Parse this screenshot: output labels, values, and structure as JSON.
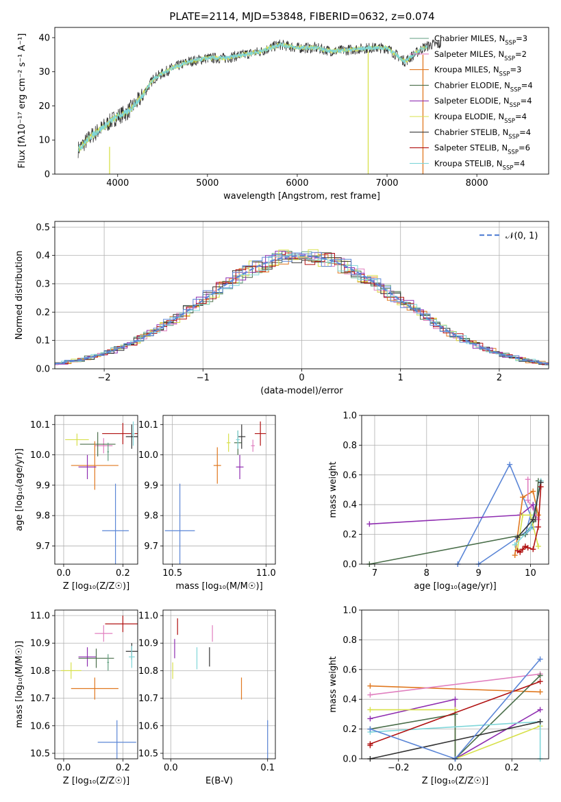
{
  "figure": {
    "title": "PLATE=2114, MJD=53848, FIBERID=0632, z=0.074"
  },
  "colors": {
    "cmiles": "#5f9e7f",
    "smiles": "#e07fbf",
    "kmiles": "#e0771e",
    "celodie": "#4a6e4a",
    "selodie": "#8e2cb0",
    "kelodie": "#d7e04a",
    "cstelib": "#333333",
    "sstelib": "#b01010",
    "kstelib": "#7fd6d9",
    "blue": "#5a85d6"
  },
  "chart_data": [
    {
      "id": "spectrum",
      "type": "line",
      "title": "PLATE=2114, MJD=53848, FIBERID=0632, z=0.074",
      "xlabel": "wavelength [Angstrom, rest frame]",
      "ylabel": "Flux [fλ10⁻¹⁷ erg cm⁻² s⁻¹ A⁻¹]",
      "xlim": [
        3300,
        8800
      ],
      "ylim": [
        0,
        43
      ],
      "xticks": [
        4000,
        5000,
        6000,
        7000,
        8000
      ],
      "yticks": [
        0,
        10,
        20,
        30,
        40
      ],
      "grid": false,
      "legend_position": "top-right",
      "legend": [
        {
          "name": "Chabrier MILES, N",
          "sub": "SSP",
          "tail": "=3",
          "color_key": "cmiles"
        },
        {
          "name": "Salpeter MILES, N",
          "sub": "SSP",
          "tail": "=2",
          "color_key": "smiles"
        },
        {
          "name": "Kroupa MILES, N",
          "sub": "SSP",
          "tail": "=3",
          "color_key": "kmiles"
        },
        {
          "name": "Chabrier ELODIE, N",
          "sub": "SSP",
          "tail": "=4",
          "color_key": "celodie"
        },
        {
          "name": "Salpeter ELODIE, N",
          "sub": "SSP",
          "tail": "=4",
          "color_key": "selodie"
        },
        {
          "name": "Kroupa ELODIE, N",
          "sub": "SSP",
          "tail": "=4",
          "color_key": "kelodie"
        },
        {
          "name": "Chabrier STELIB, N",
          "sub": "SSP",
          "tail": "=4",
          "color_key": "cstelib"
        },
        {
          "name": "Salpeter STELIB, N",
          "sub": "SSP",
          "tail": "=6",
          "color_key": "sstelib"
        },
        {
          "name": "Kroupa STELIB, N",
          "sub": "SSP",
          "tail": "=4",
          "color_key": "kstelib"
        }
      ],
      "continuum_wave": [
        3550,
        3700,
        3850,
        4000,
        4100,
        4250,
        4400,
        4600,
        4800,
        5000,
        5200,
        5400,
        5600,
        5800,
        6000,
        6200,
        6400,
        6600,
        6800,
        7000,
        7200,
        7400,
        7500
      ],
      "continuum_flux": [
        7,
        11,
        14,
        17,
        18,
        22,
        28,
        31,
        33,
        34,
        34,
        35,
        36,
        38,
        37,
        37,
        36,
        36.5,
        37,
        37,
        33,
        37,
        38
      ],
      "vertical_lines": [
        {
          "x": 3910,
          "from": 0,
          "to": 8,
          "color_key": "kelodie"
        },
        {
          "x": 6790,
          "from": 0,
          "to": 36,
          "color_key": "kelodie"
        },
        {
          "x": 7400,
          "from": 0,
          "to": 35,
          "color_key": "kmiles"
        }
      ]
    },
    {
      "id": "residual_hist",
      "type": "line",
      "xlabel": "(data-model)/error",
      "ylabel": "Normed distribution",
      "xlim": [
        -2.5,
        2.5
      ],
      "ylim": [
        0,
        0.52
      ],
      "xticks": [
        -2,
        -1,
        0,
        1,
        2
      ],
      "xtick_labels": [
        "−2",
        "−1",
        "0",
        "1",
        "2"
      ],
      "yticks": [
        0,
        0.1,
        0.2,
        0.3,
        0.4,
        0.5
      ],
      "ytick_labels": [
        "0.0",
        "0.1",
        "0.2",
        "0.3",
        "0.4",
        "0.5"
      ],
      "grid": true,
      "legend": [
        {
          "name": "𝒩(0, 1)",
          "color_key": "blue"
        }
      ],
      "legend_position": "top-right",
      "bin_width": 0.1
    },
    {
      "id": "age_vs_Z",
      "type": "scatter",
      "xlabel": "Z [log₁₀(Z/Z☉)]",
      "ylabel": "age  [log₁₀(age/yr)]",
      "xlim": [
        -0.03,
        0.25
      ],
      "ylim": [
        9.64,
        10.13
      ],
      "xticks": [
        0.0,
        0.2
      ],
      "xtick_labels": [
        "0.0",
        "0.2"
      ],
      "yticks": [
        9.7,
        9.8,
        9.9,
        10.0,
        10.1
      ],
      "ytick_labels": [
        "9.7",
        "9.8",
        "9.9",
        "10.0",
        "10.1"
      ],
      "grid": true,
      "points": [
        {
          "x": 0.045,
          "y": 10.05,
          "xerr": 0.04,
          "yerr": 0.02,
          "color_key": "kelodie"
        },
        {
          "x": 0.135,
          "y": 10.03,
          "xerr": 0.03,
          "yerr": 0.025,
          "color_key": "smiles"
        },
        {
          "x": 0.115,
          "y": 10.035,
          "xerr": 0.06,
          "yerr": 0.04,
          "color_key": "celodie"
        },
        {
          "x": 0.105,
          "y": 9.965,
          "xerr": 0.08,
          "yerr": 0.08,
          "color_key": "kmiles"
        },
        {
          "x": 0.08,
          "y": 9.96,
          "xerr": 0.03,
          "yerr": 0.04,
          "color_key": "selodie"
        },
        {
          "x": 0.2,
          "y": 10.07,
          "xerr": 0.07,
          "yerr": 0.035,
          "color_key": "sstelib"
        },
        {
          "x": 0.23,
          "y": 10.06,
          "xerr": 0.02,
          "yerr": 0.04,
          "color_key": "cstelib"
        },
        {
          "x": 0.235,
          "y": 10.07,
          "xerr": 0.005,
          "yerr": 0.04,
          "color_key": "kstelib"
        },
        {
          "x": 0.15,
          "y": 10.01,
          "xerr": 0.003,
          "yerr": 0.03,
          "color_key": "cmiles"
        },
        {
          "x": 0.175,
          "y": 9.75,
          "xerr": 0.045,
          "yerr": 0.155,
          "color_key": "blue"
        }
      ]
    },
    {
      "id": "age_vs_mass",
      "type": "scatter",
      "xlabel": "mass [log₁₀(M/M☉)]",
      "xlim": [
        10.45,
        11.05
      ],
      "ylim": [
        9.64,
        10.13
      ],
      "xticks": [
        10.5,
        11.0
      ],
      "xtick_labels": [
        "10.5",
        "11.0"
      ],
      "yticks": [
        9.7,
        9.8,
        9.9,
        10.0,
        10.1
      ],
      "ytick_labels": [
        "9.7",
        "9.8",
        "9.9",
        "10.0",
        "10.1"
      ],
      "grid": true,
      "points": [
        {
          "x": 10.8,
          "y": 10.04,
          "xerr": 0.01,
          "yerr": 0.03,
          "color_key": "kelodie"
        },
        {
          "x": 10.74,
          "y": 9.965,
          "xerr": 0.02,
          "yerr": 0.06,
          "color_key": "kmiles"
        },
        {
          "x": 10.85,
          "y": 10.04,
          "xerr": 0.02,
          "yerr": 0.04,
          "color_key": "celodie"
        },
        {
          "x": 10.86,
          "y": 9.96,
          "xerr": 0.02,
          "yerr": 0.04,
          "color_key": "selodie"
        },
        {
          "x": 10.93,
          "y": 10.03,
          "xerr": 0.01,
          "yerr": 0.02,
          "color_key": "smiles"
        },
        {
          "x": 10.97,
          "y": 10.07,
          "xerr": 0.03,
          "yerr": 0.04,
          "color_key": "sstelib"
        },
        {
          "x": 10.87,
          "y": 10.06,
          "xerr": 0.02,
          "yerr": 0.04,
          "color_key": "cstelib"
        },
        {
          "x": 10.85,
          "y": 10.05,
          "xerr": 0.01,
          "yerr": 0.03,
          "color_key": "kstelib"
        },
        {
          "x": 10.54,
          "y": 9.75,
          "xerr": 0.08,
          "yerr": 0.155,
          "color_key": "blue"
        }
      ]
    },
    {
      "id": "weight_vs_age",
      "type": "line",
      "xlabel": "age  [log₁₀(age/yr)]",
      "ylabel": "mass weight",
      "xlim": [
        6.75,
        10.35
      ],
      "ylim": [
        0,
        1.0
      ],
      "xticks": [
        7,
        8,
        9,
        10
      ],
      "xtick_labels": [
        "7",
        "8",
        "9",
        "10"
      ],
      "yticks": [
        0,
        0.2,
        0.4,
        0.6,
        0.8,
        1.0
      ],
      "ytick_labels": [
        "0.0",
        "0.2",
        "0.4",
        "0.6",
        "0.8",
        "1.0"
      ],
      "grid": true,
      "series": [
        {
          "color_key": "blue",
          "x": [
            8.6,
            9.6,
            10.0,
            9.9,
            10.05,
            9.0
          ],
          "y": [
            0.0,
            0.67,
            0.33,
            0.2,
            0.25,
            0.0
          ]
        },
        {
          "color_key": "selodie",
          "x": [
            6.9,
            9.8,
            10.05,
            10.1
          ],
          "y": [
            0.27,
            0.33,
            0.4,
            0.3
          ]
        },
        {
          "color_key": "celodie",
          "x": [
            6.9,
            9.9,
            10.1,
            10.15
          ],
          "y": [
            0.0,
            0.2,
            0.3,
            0.56
          ]
        },
        {
          "color_key": "kmiles",
          "x": [
            9.7,
            9.85,
            10.05,
            10.15
          ],
          "y": [
            0.06,
            0.45,
            0.49,
            0.33
          ]
        },
        {
          "color_key": "smiles",
          "x": [
            9.95,
            9.95,
            10.15
          ],
          "y": [
            0.57,
            0.43,
            0.3
          ]
        },
        {
          "color_key": "kelodie",
          "x": [
            9.75,
            9.85,
            10.0,
            10.15
          ],
          "y": [
            0.1,
            0.33,
            0.33,
            0.12
          ]
        },
        {
          "color_key": "kstelib",
          "x": [
            9.7,
            10.0,
            10.2
          ],
          "y": [
            0.13,
            0.24,
            0.56
          ]
        },
        {
          "color_key": "cstelib",
          "x": [
            9.75,
            10.05,
            10.2
          ],
          "y": [
            0.18,
            0.3,
            0.55
          ]
        },
        {
          "color_key": "sstelib",
          "x": [
            9.75,
            9.8,
            9.85,
            9.9,
            9.95,
            10.05,
            10.15,
            10.2
          ],
          "y": [
            0.09,
            0.08,
            0.1,
            0.12,
            0.11,
            0.1,
            0.25,
            0.52
          ]
        }
      ]
    },
    {
      "id": "mass_vs_Z",
      "type": "scatter",
      "xlabel": "Z [log₁₀(Z/Z☉)]",
      "ylabel": "mass [log₁₀(M/M☉)]",
      "xlim": [
        -0.03,
        0.25
      ],
      "ylim": [
        10.48,
        11.02
      ],
      "xticks": [
        0.0,
        0.2
      ],
      "xtick_labels": [
        "0.0",
        "0.2"
      ],
      "yticks": [
        10.5,
        10.6,
        10.7,
        10.8,
        10.9,
        11.0
      ],
      "ytick_labels": [
        "10.5",
        "10.6",
        "10.7",
        "10.8",
        "10.9",
        "11.0"
      ],
      "grid": true,
      "points": [
        {
          "x": 0.025,
          "y": 10.8,
          "xerr": 0.035,
          "yerr": 0.03,
          "color_key": "kelodie"
        },
        {
          "x": 0.105,
          "y": 10.735,
          "xerr": 0.08,
          "yerr": 0.04,
          "color_key": "kmiles"
        },
        {
          "x": 0.08,
          "y": 10.85,
          "xerr": 0.03,
          "yerr": 0.035,
          "color_key": "selodie"
        },
        {
          "x": 0.135,
          "y": 10.935,
          "xerr": 0.03,
          "yerr": 0.03,
          "color_key": "smiles"
        },
        {
          "x": 0.11,
          "y": 10.845,
          "xerr": 0.06,
          "yerr": 0.035,
          "color_key": "celodie"
        },
        {
          "x": 0.2,
          "y": 10.97,
          "xerr": 0.06,
          "yerr": 0.03,
          "color_key": "sstelib"
        },
        {
          "x": 0.23,
          "y": 10.87,
          "xerr": 0.02,
          "yerr": 0.03,
          "color_key": "cstelib"
        },
        {
          "x": 0.23,
          "y": 10.85,
          "xerr": 0.01,
          "yerr": 0.04,
          "color_key": "kstelib"
        },
        {
          "x": 0.15,
          "y": 10.83,
          "xerr": 0.003,
          "yerr": 0.03,
          "color_key": "cmiles"
        },
        {
          "x": 0.18,
          "y": 10.54,
          "xerr": 0.065,
          "yerr": 0.08,
          "color_key": "blue"
        }
      ]
    },
    {
      "id": "mass_vs_ebv",
      "type": "scatter",
      "xlabel": "E(B-V)",
      "xlim": [
        -0.008,
        0.108
      ],
      "ylim": [
        10.48,
        11.02
      ],
      "xticks": [
        0.0,
        0.1
      ],
      "xtick_labels": [
        "0.0",
        "0.1"
      ],
      "yticks": [
        10.5,
        10.6,
        10.7,
        10.8,
        10.9,
        11.0
      ],
      "ytick_labels": [
        "10.5",
        "10.6",
        "10.7",
        "10.8",
        "10.9",
        "11.0"
      ],
      "grid": true,
      "points": [
        {
          "x": 0.002,
          "y": 10.8,
          "xerr": 0,
          "yerr": 0.03,
          "color_key": "kelodie"
        },
        {
          "x": 0.004,
          "y": 10.88,
          "xerr": 0,
          "yerr": 0.035,
          "color_key": "selodie"
        },
        {
          "x": 0.007,
          "y": 10.96,
          "xerr": 0,
          "yerr": 0.03,
          "color_key": "sstelib"
        },
        {
          "x": 0.027,
          "y": 10.845,
          "xerr": 0,
          "yerr": 0.04,
          "color_key": "kstelib"
        },
        {
          "x": 0.04,
          "y": 10.85,
          "xerr": 0,
          "yerr": 0.035,
          "color_key": "cstelib"
        },
        {
          "x": 0.043,
          "y": 10.935,
          "xerr": 0,
          "yerr": 0.03,
          "color_key": "smiles"
        },
        {
          "x": 0.073,
          "y": 10.735,
          "xerr": 0,
          "yerr": 0.04,
          "color_key": "kmiles"
        },
        {
          "x": 0.1,
          "y": 10.54,
          "xerr": 0,
          "yerr": 0.08,
          "color_key": "blue"
        }
      ]
    },
    {
      "id": "weight_vs_Z",
      "type": "line",
      "xlabel": "Z [log₁₀(Z/Z☉)]",
      "ylabel": "mass weight",
      "xlim": [
        -0.33,
        0.33
      ],
      "ylim": [
        0,
        1.0
      ],
      "xticks": [
        -0.2,
        0.0,
        0.2
      ],
      "xtick_labels": [
        "−0.2",
        "0.0",
        "0.2"
      ],
      "yticks": [
        0,
        0.2,
        0.4,
        0.6,
        0.8,
        1.0
      ],
      "ytick_labels": [
        "0.0",
        "0.2",
        "0.4",
        "0.6",
        "0.8",
        "1.0"
      ],
      "grid": true,
      "series": [
        {
          "color_key": "kmiles",
          "x": [
            -0.3,
            0.3
          ],
          "y": [
            0.49,
            0.45
          ]
        },
        {
          "color_key": "smiles",
          "x": [
            -0.3,
            0.3
          ],
          "y": [
            0.43,
            0.57
          ]
        },
        {
          "color_key": "selodie",
          "x": [
            -0.3,
            0.0,
            0.0,
            0.3
          ],
          "y": [
            0.27,
            0.4,
            0.0,
            0.33
          ]
        },
        {
          "color_key": "kelodie",
          "x": [
            -0.3,
            0.0,
            0.0,
            0.3
          ],
          "y": [
            0.33,
            0.33,
            0.0,
            0.22
          ]
        },
        {
          "color_key": "celodie",
          "x": [
            -0.3,
            0.0,
            0.0,
            0.3
          ],
          "y": [
            0.2,
            0.3,
            0.0,
            0.56
          ]
        },
        {
          "color_key": "kstelib",
          "x": [
            -0.3,
            0.3,
            0.3
          ],
          "y": [
            0.18,
            0.25,
            0.0
          ]
        },
        {
          "color_key": "sstelib",
          "x": [
            -0.3,
            -0.3,
            0.3
          ],
          "y": [
            0.09,
            0.1,
            0.52
          ]
        },
        {
          "color_key": "cstelib",
          "x": [
            -0.3,
            0.3
          ],
          "y": [
            0.0,
            0.25
          ]
        },
        {
          "color_key": "blue",
          "x": [
            -0.3,
            0.0,
            0.0,
            0.3
          ],
          "y": [
            0.2,
            0.0,
            0.0,
            0.67
          ]
        }
      ]
    }
  ]
}
